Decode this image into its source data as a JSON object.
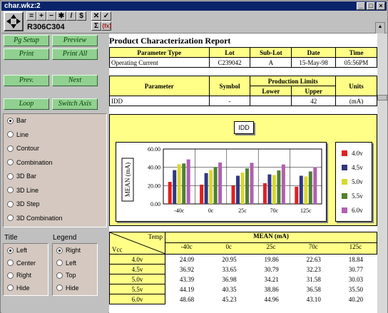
{
  "window": {
    "title": "char.wkz:2",
    "doc_name": "R306C304"
  },
  "toolbar": {
    "icons": [
      "minus-icon",
      "plus-icon",
      "equals-icon",
      "asterisk-icon",
      "slash-icon",
      "dollar-icon",
      "close-x-icon",
      "check-icon",
      "sigma-icon",
      "fx-icon"
    ]
  },
  "buttons": {
    "pg_setup": "Pg Setup",
    "preview": "Preview",
    "print": "Print",
    "print_all": "Print All",
    "prev": "Prev.",
    "next": "Next",
    "loop": "Loop",
    "switch_axis": "Switch Axis"
  },
  "chart_types": [
    {
      "label": "Bar",
      "selected": true
    },
    {
      "label": "Line",
      "selected": false
    },
    {
      "label": "Contour",
      "selected": false
    },
    {
      "label": "Combination",
      "selected": false
    },
    {
      "label": "3D Bar",
      "selected": false
    },
    {
      "label": "3D Line",
      "selected": false
    },
    {
      "label": "3D Step",
      "selected": false
    },
    {
      "label": "3D Combination",
      "selected": false
    }
  ],
  "title_options": {
    "label": "Title",
    "items": [
      {
        "label": "Left",
        "selected": true
      },
      {
        "label": "Center",
        "selected": false
      },
      {
        "label": "Right",
        "selected": false
      },
      {
        "label": "Hide",
        "selected": false
      }
    ]
  },
  "legend_options": {
    "label": "Legend",
    "items": [
      {
        "label": "Right",
        "selected": true
      },
      {
        "label": "Left",
        "selected": false
      },
      {
        "label": "Top",
        "selected": false
      },
      {
        "label": "Hide",
        "selected": false
      }
    ]
  },
  "report": {
    "title": "Product Characterization Report",
    "header1": {
      "cols": [
        "Parameter  Type",
        "Lot",
        "Sub-Lot",
        "Date",
        "Time"
      ],
      "row": [
        "Operating Current",
        "C239042",
        "A",
        "15-May-98",
        "05:56PM"
      ]
    },
    "header2": {
      "parameter": "Parameter",
      "symbol": "Symbol",
      "limits": "Production Limits",
      "lower": "Lower",
      "upper": "Upper",
      "units": "Units",
      "row": [
        "IDD",
        "-",
        "",
        "42",
        "(mA)"
      ]
    },
    "chart_label": "IDD",
    "table": {
      "temp_label": "Temp",
      "vcc_label": "Vcc",
      "mean_label": "MEAN  (mA)",
      "cols": [
        "-40c",
        "0c",
        "25c",
        "70c",
        "125c"
      ],
      "rows": [
        {
          "v": "4.0v",
          "vals": [
            "24.09",
            "20.95",
            "19.86",
            "22.63",
            "18.84"
          ]
        },
        {
          "v": "4.5v",
          "vals": [
            "36.92",
            "33.65",
            "30.79",
            "32.23",
            "30.77"
          ]
        },
        {
          "v": "5.0v",
          "vals": [
            "43.39",
            "36.98",
            "34.21",
            "31.58",
            "30.03"
          ]
        },
        {
          "v": "5.5v",
          "vals": [
            "44.19",
            "40.35",
            "38.86",
            "36.58",
            "35.50"
          ]
        },
        {
          "v": "6.0v",
          "vals": [
            "48.68",
            "45.23",
            "44.96",
            "43.10",
            "40.20"
          ]
        }
      ]
    }
  },
  "chart_data": {
    "type": "bar",
    "ylabel": "MEAN  (mA)",
    "ylim": [
      0,
      60
    ],
    "yticks": [
      "60.00",
      "40.00",
      "20.00",
      "0.00"
    ],
    "categories": [
      "-40c",
      "0c",
      "25c",
      "70c",
      "125c"
    ],
    "series": [
      {
        "name": "4.0v",
        "color": "#e02020",
        "values": [
          24.09,
          20.95,
          19.86,
          22.63,
          18.84
        ]
      },
      {
        "name": "4.5v",
        "color": "#303880",
        "values": [
          36.92,
          33.65,
          30.79,
          32.23,
          30.77
        ]
      },
      {
        "name": "5.0v",
        "color": "#d8d830",
        "values": [
          43.39,
          36.98,
          34.21,
          31.58,
          30.03
        ]
      },
      {
        "name": "5.5v",
        "color": "#508030",
        "values": [
          44.19,
          40.35,
          38.86,
          36.58,
          35.5
        ]
      },
      {
        "name": "6.0v",
        "color": "#b060b0",
        "values": [
          48.68,
          45.23,
          44.96,
          43.1,
          40.2
        ]
      }
    ],
    "grid": true
  }
}
